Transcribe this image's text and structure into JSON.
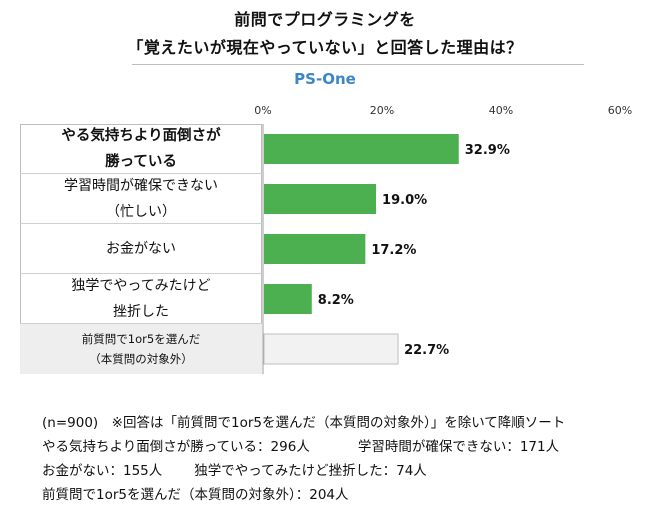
{
  "title_line1": "前問でプログラミングを",
  "title_line2": "「覚えたいが現在やっていない」と回答した理由は？",
  "brand": "PS-One",
  "chart_data": {
    "type": "bar",
    "orientation": "horizontal",
    "categories": [
      [
        "やる気持ちより面倒さが",
        "勝っている"
      ],
      [
        "学習時間が確保できない",
        "（忙しい）"
      ],
      [
        "お金がない"
      ],
      [
        "独学でやってみたけど",
        "挫折した"
      ],
      [
        "前質問で1or5を選んだ",
        "（本質問の対象外）"
      ]
    ],
    "values": [
      32.9,
      19.0,
      17.2,
      8.2,
      22.7
    ],
    "value_labels": [
      "32.9%",
      "19.0%",
      "17.2%",
      "8.2%",
      "22.7%"
    ],
    "x_ticks": [
      "0%",
      "20%",
      "40%",
      "60%"
    ],
    "xlim": [
      0,
      60
    ],
    "colors": [
      "#4caf50",
      "#4caf50",
      "#4caf50",
      "#4caf50",
      "#f2f2f2"
    ]
  },
  "notes": {
    "line1": "(n=900)　※回答は「前質問で1or5を選んだ（本質問の対象外）」を除いて降順ソート",
    "line2a": "やる気持ちより面倒さが勝っている：296人",
    "line2b": "学習時間が確保できない：171人",
    "line3a": "お金がない：155人",
    "line3b": "独学でやってみたけど挫折した：74人",
    "line4": "前質問で1or5を選んだ（本質問の対象外）：204人"
  }
}
